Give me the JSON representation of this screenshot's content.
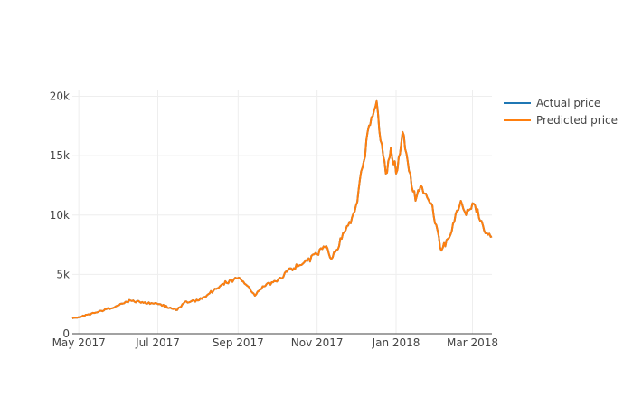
{
  "chart_data": {
    "type": "line",
    "title": "",
    "xlabel": "",
    "ylabel": "",
    "x_ticks": [
      "May 2017",
      "Jul 2017",
      "Sep 2017",
      "Nov 2017",
      "Jan 2018",
      "Mar 2018"
    ],
    "x_tick_dates": [
      "2017-05-01",
      "2017-07-01",
      "2017-09-01",
      "2017-11-01",
      "2018-01-01",
      "2018-03-01"
    ],
    "xlim": [
      "2017-04-26",
      "2018-03-16"
    ],
    "y_ticks": [
      "0",
      "5k",
      "10k",
      "15k",
      "20k"
    ],
    "y_tick_values": [
      0,
      5000,
      10000,
      15000,
      20000
    ],
    "ylim": [
      0,
      20500
    ],
    "grid": true,
    "legend_position": "top-right",
    "x": [
      "2017-04-26",
      "2017-05-01",
      "2017-05-15",
      "2017-06-01",
      "2017-06-10",
      "2017-06-20",
      "2017-07-01",
      "2017-07-16",
      "2017-07-22",
      "2017-08-01",
      "2017-08-10",
      "2017-08-20",
      "2017-09-01",
      "2017-09-05",
      "2017-09-14",
      "2017-09-20",
      "2017-10-01",
      "2017-10-12",
      "2017-10-20",
      "2017-11-01",
      "2017-11-08",
      "2017-11-12",
      "2017-11-20",
      "2017-11-28",
      "2017-12-01",
      "2017-12-07",
      "2017-12-10",
      "2017-12-17",
      "2017-12-22",
      "2017-12-24",
      "2017-12-28",
      "2018-01-01",
      "2018-01-06",
      "2018-01-10",
      "2018-01-16",
      "2018-01-20",
      "2018-01-28",
      "2018-02-05",
      "2018-02-10",
      "2018-02-20",
      "2018-02-24",
      "2018-03-01",
      "2018-03-08",
      "2018-03-12",
      "2018-03-16"
    ],
    "series": [
      {
        "name": "Actual price",
        "color": "#1f77b4",
        "values": [
          1300,
          1400,
          1800,
          2400,
          2800,
          2600,
          2500,
          2000,
          2700,
          2800,
          3400,
          4200,
          4700,
          4400,
          3200,
          4000,
          4400,
          5500,
          5800,
          6700,
          7400,
          6300,
          8000,
          9800,
          10800,
          14500,
          17000,
          19600,
          15000,
          13500,
          15700,
          13500,
          17000,
          14500,
          11200,
          12500,
          11000,
          7000,
          8000,
          11200,
          10000,
          11000,
          9500,
          8500,
          8200
        ]
      },
      {
        "name": "Predicted price",
        "color": "#ff7f0e",
        "values": [
          1300,
          1400,
          1800,
          2400,
          2800,
          2600,
          2500,
          2000,
          2700,
          2800,
          3400,
          4200,
          4700,
          4400,
          3200,
          4000,
          4400,
          5500,
          5800,
          6700,
          7400,
          6300,
          8000,
          9800,
          10800,
          14500,
          17000,
          19600,
          15000,
          13500,
          15700,
          13500,
          17000,
          14500,
          11200,
          12500,
          11000,
          7000,
          8000,
          11200,
          10000,
          11000,
          9500,
          8500,
          8200
        ]
      }
    ]
  }
}
